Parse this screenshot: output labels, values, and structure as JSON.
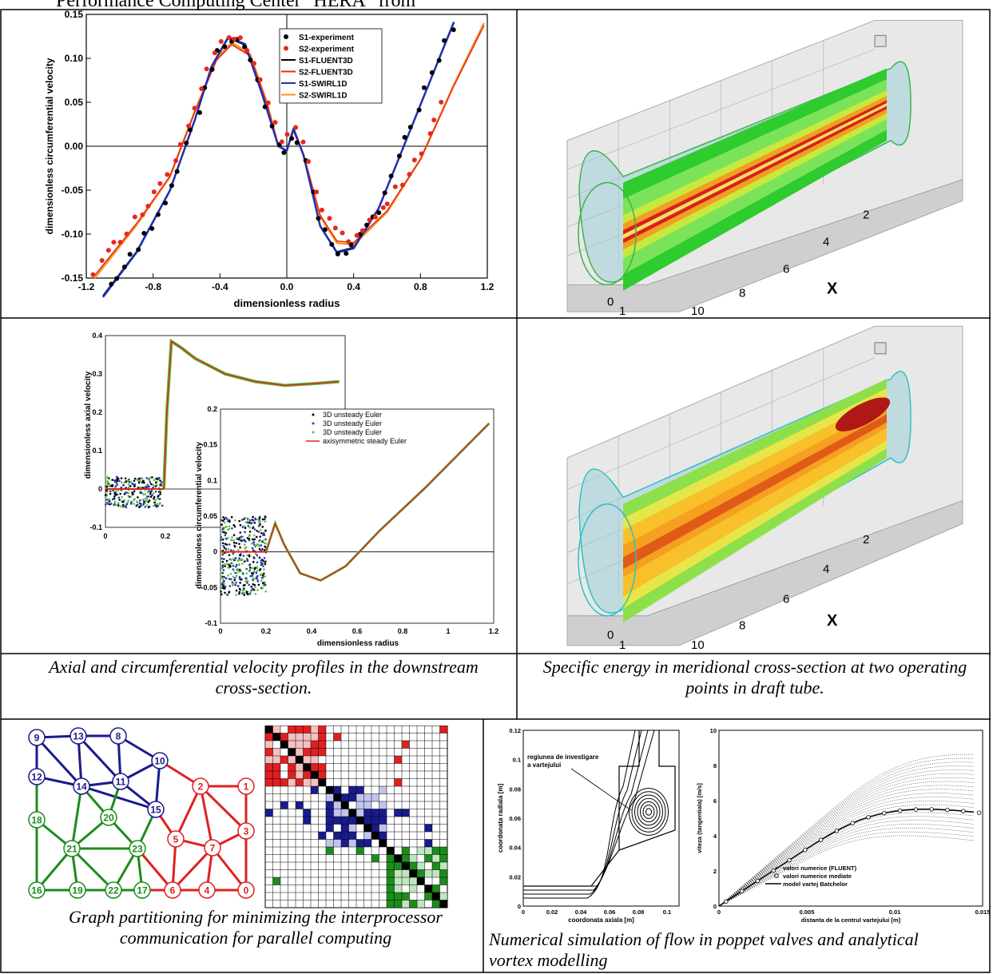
{
  "header": {
    "text": "Performance Computing Center \"HERA\" from"
  },
  "captions": {
    "axial_profiles": "Axial and circumferential velocity profiles in the downstream cross-section.",
    "specific_energy": "Specific energy in meridional cross-section at two operating points in draft tube.",
    "graph_partitioning": "Graph partitioning for minimizing the interprocessor communication for parallel computing",
    "poppet_valves": "Numerical simulation of flow in poppet valves and analytical vortex modelling"
  },
  "colors": {
    "s1_exp": "#000000",
    "s2_exp": "#e8281c",
    "s1_fluent": "#000000",
    "s2_fluent": "#e8281c",
    "s1_swirl": "#1f2fb4",
    "s2_swirl": "#f7941d",
    "green": "#1c8c1c",
    "blue": "#1a1a8c",
    "red": "#e02020"
  },
  "chart_data": [
    {
      "type": "line",
      "xlabel": "dimensionless radius",
      "ylabel": "dimensionless circumferential velocity",
      "xlim": [
        -1.2,
        1.2
      ],
      "ylim": [
        -0.15,
        0.15
      ],
      "xticks": [
        "-1.2",
        "-0.8",
        "-0.4",
        "0.0",
        "0.4",
        "0.8",
        "1.2"
      ],
      "yticks": [
        "0.15",
        "0.10",
        "0.05",
        "0.00",
        "-0.05",
        "-0.10",
        "-0.15"
      ],
      "legend": [
        "S1-experiment",
        "S2-experiment",
        "S1-FLUENT3D",
        "S2-FLUENT3D",
        "S1-SWIRL1D",
        "S2-SWIRL1D"
      ],
      "series": [
        {
          "name": "S1-SWIRL1D",
          "x": [
            -1.1,
            -0.9,
            -0.7,
            -0.55,
            -0.45,
            -0.35,
            -0.25,
            -0.15,
            -0.05,
            0.0,
            0.04,
            0.1,
            0.2,
            0.3,
            0.4,
            0.55,
            0.7,
            0.85,
            1.0
          ],
          "y": [
            -0.17,
            -0.12,
            -0.05,
            0.03,
            0.09,
            0.123,
            0.115,
            0.06,
            0.0,
            -0.005,
            0.02,
            -0.01,
            -0.09,
            -0.12,
            -0.115,
            -0.07,
            0.0,
            0.07,
            0.14
          ]
        },
        {
          "name": "S2-SWIRL1D",
          "x": [
            -1.15,
            -0.9,
            -0.7,
            -0.55,
            -0.42,
            -0.33,
            -0.22,
            -0.12,
            -0.05,
            0.0,
            0.04,
            0.1,
            0.2,
            0.3,
            0.4,
            0.6,
            0.8,
            1.0,
            1.18
          ],
          "y": [
            -0.15,
            -0.09,
            -0.035,
            0.04,
            0.1,
            0.118,
            0.105,
            0.05,
            0.0,
            -0.005,
            0.018,
            -0.01,
            -0.08,
            -0.11,
            -0.112,
            -0.075,
            -0.015,
            0.07,
            0.14
          ]
        }
      ]
    },
    {
      "type": "scatter",
      "ylabel": "dimensionless axial velocity",
      "xlim": [
        0,
        0.8
      ],
      "ylim": [
        -0.1,
        0.4
      ],
      "xticks": [
        "0",
        "0.2"
      ],
      "yticks": [
        "0.4",
        "0.3",
        "0.2",
        "0.1",
        "0",
        "-0.1"
      ]
    },
    {
      "type": "scatter",
      "xlabel": "dimensionless radius",
      "ylabel": "dimensionless circumferential velocity",
      "xlim": [
        0,
        1.2
      ],
      "ylim": [
        -0.1,
        0.2
      ],
      "xticks": [
        "0",
        "0.2",
        "0.4",
        "0.6",
        "0.8",
        "1",
        "1.2"
      ],
      "yticks": [
        "0.2",
        "0.15",
        "0.1",
        "0.05",
        "0",
        "-0.05",
        "-0.1"
      ],
      "legend": [
        "3D unsteady Euler",
        "3D unsteady Euler",
        "3D unsteady Euler",
        "axisymmetric steady Euler"
      ]
    },
    {
      "type": "line",
      "xlabel": "coordonata axiala [m]",
      "ylabel": "coordonata radiala [m]",
      "xticks": [
        "0",
        "0.02",
        "0.04",
        "0.06",
        "0.08",
        "0.1"
      ],
      "yticks": [
        "0.12",
        "0.1",
        "0.08",
        "0.06",
        "0.04",
        "0.02",
        "0"
      ],
      "annotation": "regiunea de investigare a vartejului"
    },
    {
      "type": "scatter",
      "xlabel": "distanta de la centrul vartejului [m]",
      "ylabel": "viteza (tangentiala) [m/s]",
      "xticks": [
        "0",
        "0.005",
        "0.01",
        "0.015"
      ],
      "yticks": [
        "10",
        "8",
        "6",
        "4",
        "2",
        "0"
      ],
      "legend": [
        "valori numerice (FLUENT)",
        "valori numerice mediate",
        "model vartej Batchelor"
      ]
    }
  ],
  "draft_tube": {
    "x_ticks": [
      "2",
      "4",
      "6",
      "8",
      "10"
    ],
    "y_ticks": [
      "0",
      "1"
    ],
    "x_label": "X"
  },
  "graph": {
    "blue_nodes": [
      "9",
      "13",
      "8",
      "10",
      "12",
      "14",
      "11",
      "15"
    ],
    "green_nodes": [
      "18",
      "20",
      "21",
      "23",
      "16",
      "19",
      "22",
      "17"
    ],
    "red_nodes": [
      "2",
      "1",
      "5",
      "7",
      "3",
      "6",
      "4",
      "0"
    ]
  }
}
